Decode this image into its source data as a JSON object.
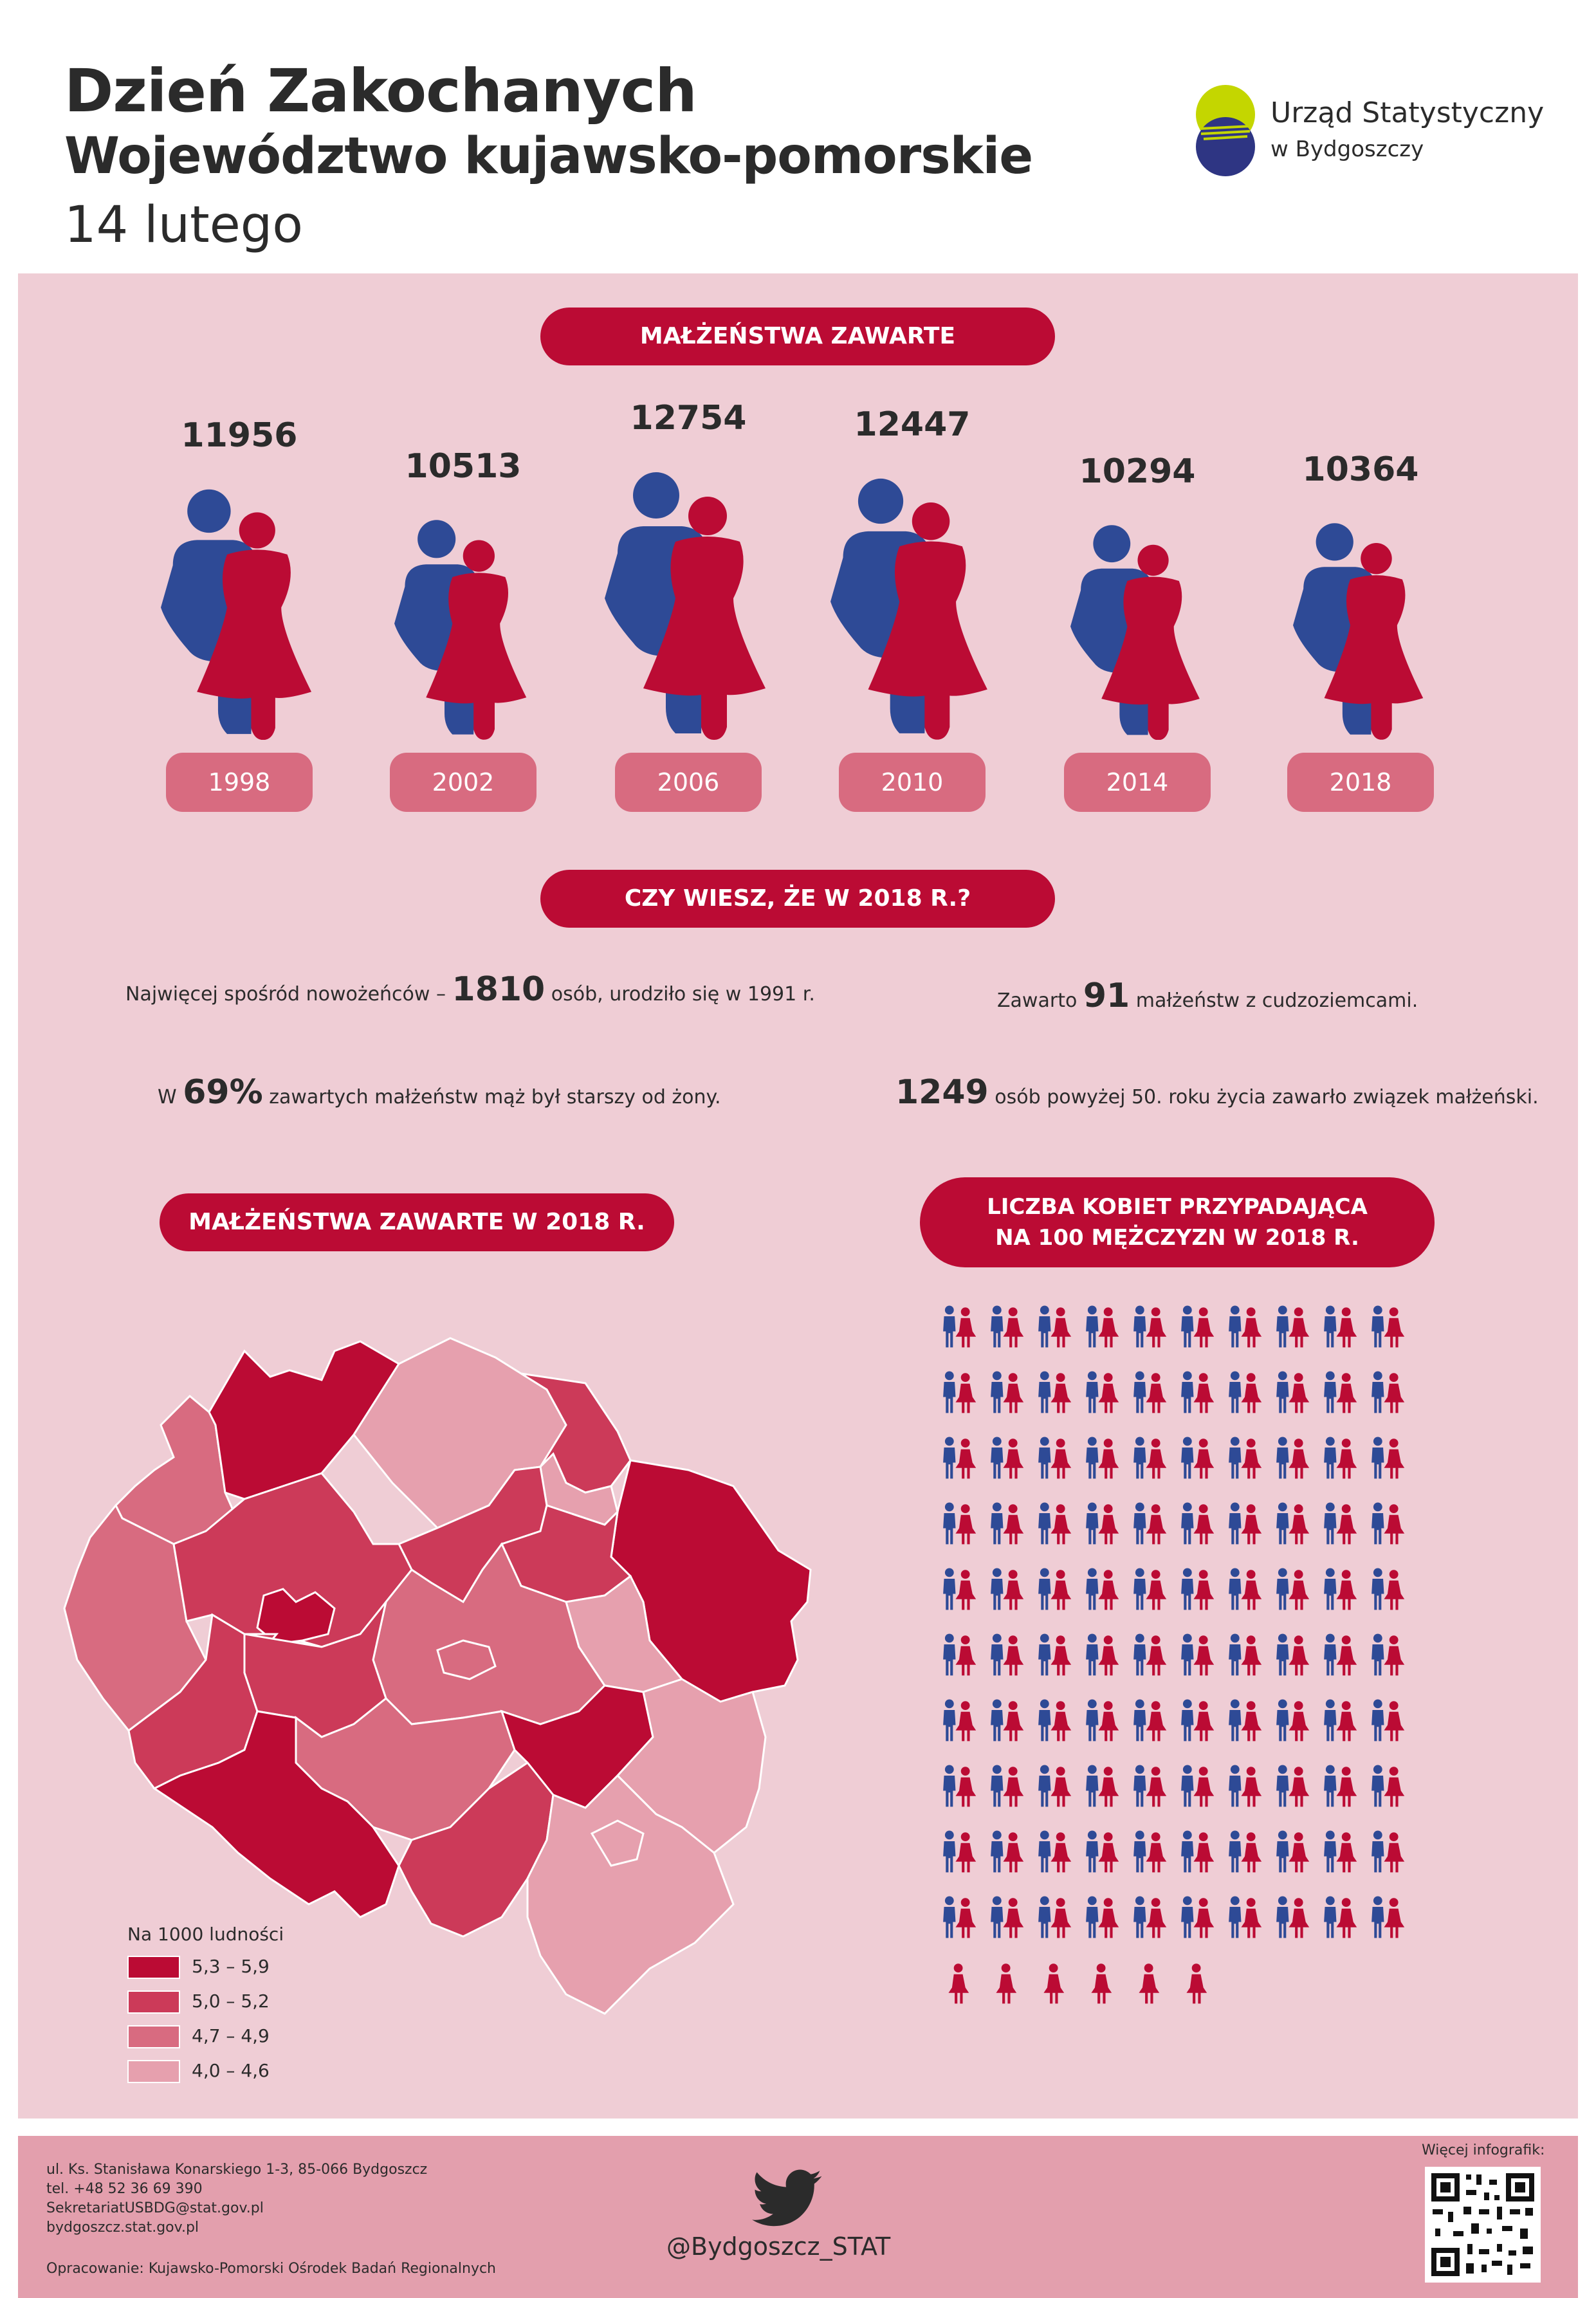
{
  "header": {
    "title": "Dzień Zakochanych",
    "subtitle": "Województwo kujawsko-pomorskie",
    "date": "14 lutego",
    "logo_line1": "Urząd Statystyczny",
    "logo_line2": "w Bydgoszczy"
  },
  "marriages": {
    "heading": "MAŁŻEŃSTWA ZAWARTE",
    "items": [
      {
        "year": "1998",
        "value": "11956"
      },
      {
        "year": "2002",
        "value": "10513"
      },
      {
        "year": "2006",
        "value": "12754"
      },
      {
        "year": "2010",
        "value": "12447"
      },
      {
        "year": "2014",
        "value": "10294"
      },
      {
        "year": "2018",
        "value": "10364"
      }
    ]
  },
  "facts": {
    "heading": "CZY WIESZ, ŻE W 2018 R.?",
    "f1_pre": "Najwięcej spośród nowożeńców – ",
    "f1_num": "1810",
    "f1_post": " osób, urodziło się w 1991 r.",
    "f2_pre": "Zawarto ",
    "f2_num": "91",
    "f2_post": " małżeństw z cudzoziemcami.",
    "f3_pre": "W ",
    "f3_num": "69%",
    "f3_post": " zawartych małżeństw mąż był starszy od żony.",
    "f4_num": "1249",
    "f4_post": " osób powyżej 50. roku życia zawarło związek małżeński."
  },
  "map": {
    "heading": "MAŁŻEŃSTWA ZAWARTE  W 2018 R.",
    "legend_title": "Na 1000 ludności",
    "legend": [
      {
        "label": "5,3 – 5,9",
        "color": "#bb0b34"
      },
      {
        "label": "5,0 – 5,2",
        "color": "#cc3a59"
      },
      {
        "label": "4,7 – 4,9",
        "color": "#d86b80"
      },
      {
        "label": "4,0 – 4,6",
        "color": "#e6a0ae"
      }
    ]
  },
  "ratio": {
    "heading_line1": "LICZBA KOBIET PRZYPADAJĄCA",
    "heading_line2": "NA 100 MĘŻCZYZN W 2018 R.",
    "couples": 100,
    "extra_women": 6
  },
  "colors": {
    "accent": "#bb0b34",
    "male": "#2e4a96",
    "female": "#bb0b34",
    "panel": "#efcdd5",
    "footer": "#e39fad"
  },
  "footer": {
    "addr1": "ul. Ks. Stanisława Konarskiego 1-3, 85-066 Bydgoszcz",
    "addr2": "tel. +48 52 36 69 390",
    "addr3": "SekretariatUSBDG@stat.gov.pl",
    "addr4": "bydgoszcz.stat.gov.pl",
    "credits": "Opracowanie: Kujawsko-Pomorski Ośrodek Badań Regionalnych",
    "twitter": "@Bydgoszcz_STAT",
    "more": "Więcej infografik:"
  }
}
